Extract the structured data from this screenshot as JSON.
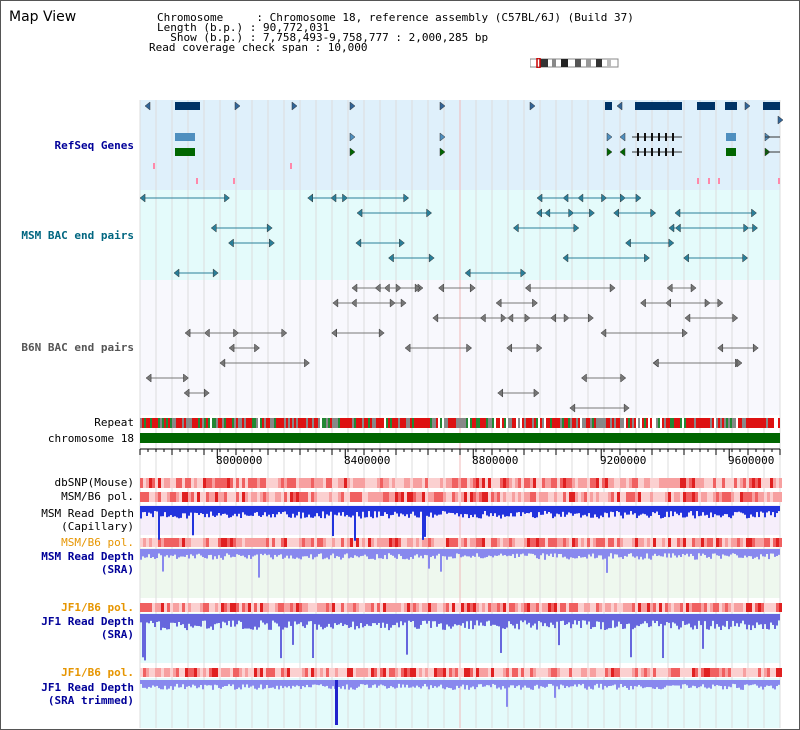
{
  "header": {
    "title": "Map View",
    "chromosome_line": "Chromosome     : Chromosome 18, reference assembly (C57BL/6J) (Build 37)",
    "length_line": "Length (b.p.) : 90,772,031",
    "show_line": "  Show (b.p.) : 7,758,493-9,758,777 : 2,000,285 bp",
    "coverage_line": "Read coverage check span : 10,000"
  },
  "tracks": {
    "refseq": {
      "label": "RefSeq Genes",
      "color": "#000099",
      "bg": "#dff0fb"
    },
    "msm_bac": {
      "label": "MSM BAC end pairs",
      "color": "#006680",
      "bg": "#e4fbfb"
    },
    "b6n_bac": {
      "label": "B6N BAC end pairs",
      "color": "#555555",
      "bg": "#f8f8fd"
    },
    "repeat": {
      "label": "Repeat"
    },
    "chromosome": {
      "label": "chromosome 18",
      "color": "#006600"
    },
    "dbsnp": {
      "label": "dbSNP(Mouse)"
    },
    "msm_b6_pol": {
      "label": "MSM/B6 pol."
    },
    "msm_depth_cap": {
      "label1": "MSM Read Depth",
      "label2": "(Capillary)"
    },
    "msm_b6_pol2": {
      "label": "MSM/B6 pol.",
      "color": "#e69500"
    },
    "msm_depth_sra": {
      "label1": "MSM Read Depth",
      "label2": "(SRA)",
      "color": "#000099"
    },
    "jf1_b6_pol": {
      "label": "JF1/B6 pol.",
      "color": "#e69500"
    },
    "jf1_depth_sra": {
      "label1": "JF1 Read Depth",
      "label2": "(SRA)",
      "color": "#000099"
    },
    "jf1_b6_pol2": {
      "label": "JF1/B6 pol.",
      "color": "#e69500"
    },
    "jf1_depth_trim": {
      "label1": "JF1 Read Depth",
      "label2": "(SRA trimmed)",
      "color": "#000099"
    }
  },
  "axis": {
    "ticks": [
      {
        "label": "8000000",
        "value": 8000000
      },
      {
        "label": "8400000",
        "value": 8400000
      },
      {
        "label": "8800000",
        "value": 8800000
      },
      {
        "label": "9200000",
        "value": 9200000
      },
      {
        "label": "9600000",
        "value": 9600000
      }
    ],
    "range": [
      7758493,
      9758777
    ]
  }
}
